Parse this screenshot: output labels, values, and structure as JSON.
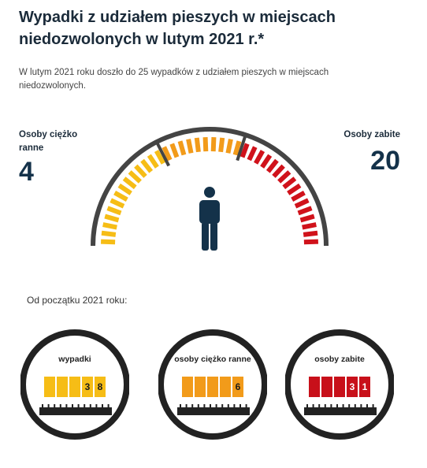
{
  "title": "Wypadki z udziałem pieszych w miejscach niedozwolonych w lutym 2021 r.*",
  "description": "W lutym 2021 roku doszło do 25 wypadków z udziałem pieszych w miejscach niedozwolonych.",
  "left_stat": {
    "label": "Osoby ciężko ranne",
    "value": "4"
  },
  "right_stat": {
    "label": "Osoby zabite",
    "value": "20"
  },
  "gauge": {
    "segments_left": 4,
    "segments_right": 20,
    "colors": {
      "yellow": "#f6bd16",
      "orange": "#f29b1a",
      "red": "#d0121b",
      "frame": "#444444"
    },
    "icon": "person-icon"
  },
  "since_label": "Od początku 2021 roku:",
  "counters": [
    {
      "label": "wypadki",
      "digits": [
        "",
        "",
        "",
        "3",
        "8"
      ],
      "color": "#f6bd16"
    },
    {
      "label": "osoby ciężko ranne",
      "digits": [
        "",
        "",
        "",
        "",
        "6"
      ],
      "color": "#f29b1a"
    },
    {
      "label": "osoby zabite",
      "digits": [
        "",
        "",
        "",
        "3",
        "1"
      ],
      "color": "#c8101a"
    }
  ]
}
